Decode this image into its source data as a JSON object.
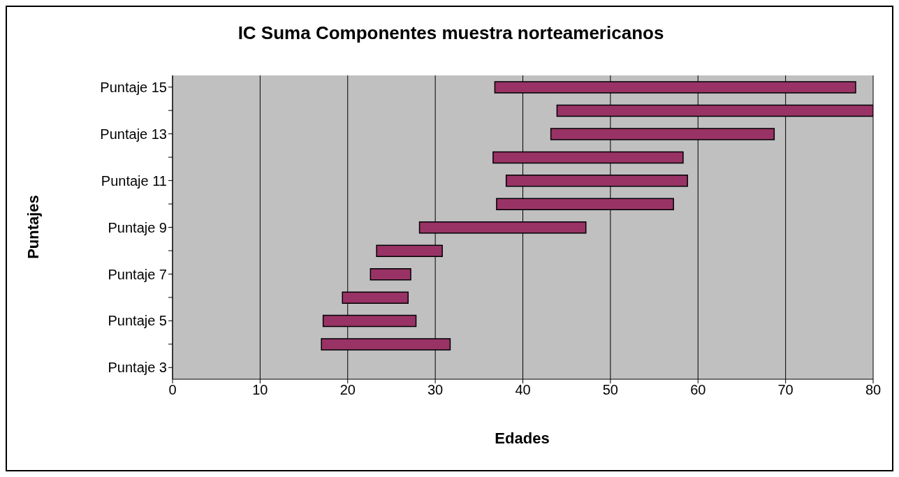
{
  "chart_data": {
    "type": "bar",
    "orientation": "horizontal",
    "title": "IC Suma Componentes muestra norteamericanos",
    "xlabel": "Edades",
    "ylabel": "Puntajes",
    "categories": [
      "Puntaje 15",
      null,
      "Puntaje 13",
      null,
      "Puntaje 11",
      null,
      "Puntaje 9",
      null,
      "Puntaje 7",
      null,
      "Puntaje 5",
      null,
      "Puntaje 3"
    ],
    "base": [
      36.8,
      43.9,
      43.2,
      36.6,
      38.1,
      37.0,
      28.2,
      23.3,
      22.6,
      19.4,
      17.2,
      17.0,
      null
    ],
    "values": [
      41.2,
      36.1,
      25.5,
      21.7,
      20.7,
      20.2,
      19.0,
      7.5,
      4.6,
      7.5,
      10.6,
      14.7,
      null
    ],
    "color": "#993366",
    "xlim": [
      0,
      80
    ],
    "xticks": [
      0,
      10,
      20,
      30,
      40,
      50,
      60,
      70,
      80
    ],
    "grid": "x",
    "legend": false
  }
}
